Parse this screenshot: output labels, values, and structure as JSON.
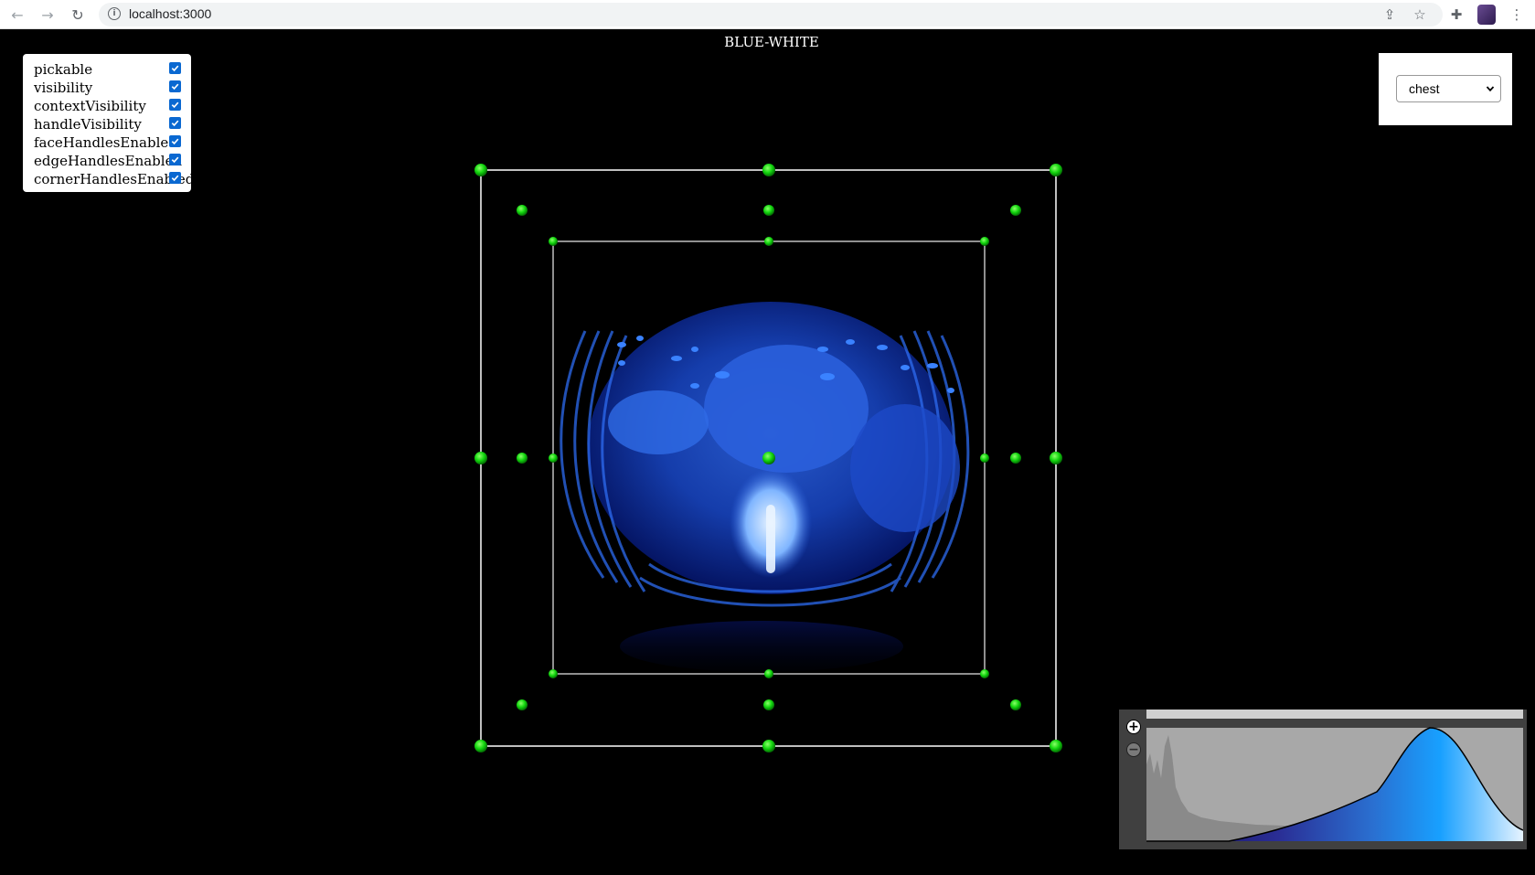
{
  "browser": {
    "url": "localhost:3000",
    "icons": [
      "back-icon",
      "forward-icon",
      "reload-icon",
      "info-icon",
      "share-icon",
      "star-icon",
      "extensions-icon",
      "menu-icon"
    ]
  },
  "toggles": {
    "items": [
      {
        "label": "pickable",
        "checked": true
      },
      {
        "label": "visibility",
        "checked": true
      },
      {
        "label": "contextVisibility",
        "checked": true
      },
      {
        "label": "handleVisibility",
        "checked": true
      },
      {
        "label": "faceHandlesEnabled",
        "checked": true
      },
      {
        "label": "edgeHandlesEnabled",
        "checked": true
      },
      {
        "label": "cornerHandlesEnabled",
        "checked": true
      }
    ]
  },
  "colormap": {
    "name": "BLUE-WHITE"
  },
  "preset": {
    "selected": "chest"
  },
  "transfer_function": {
    "zoom_in_symbol": "+",
    "zoom_out_symbol": "−"
  },
  "colors": {
    "handle": "#00dd00",
    "box_outline": "#bfbfbf",
    "checkbox": "#0a68d1",
    "volume_dark": "#0a1f8a",
    "volume_mid": "#1a55e0",
    "volume_light": "#cfe8ff"
  }
}
